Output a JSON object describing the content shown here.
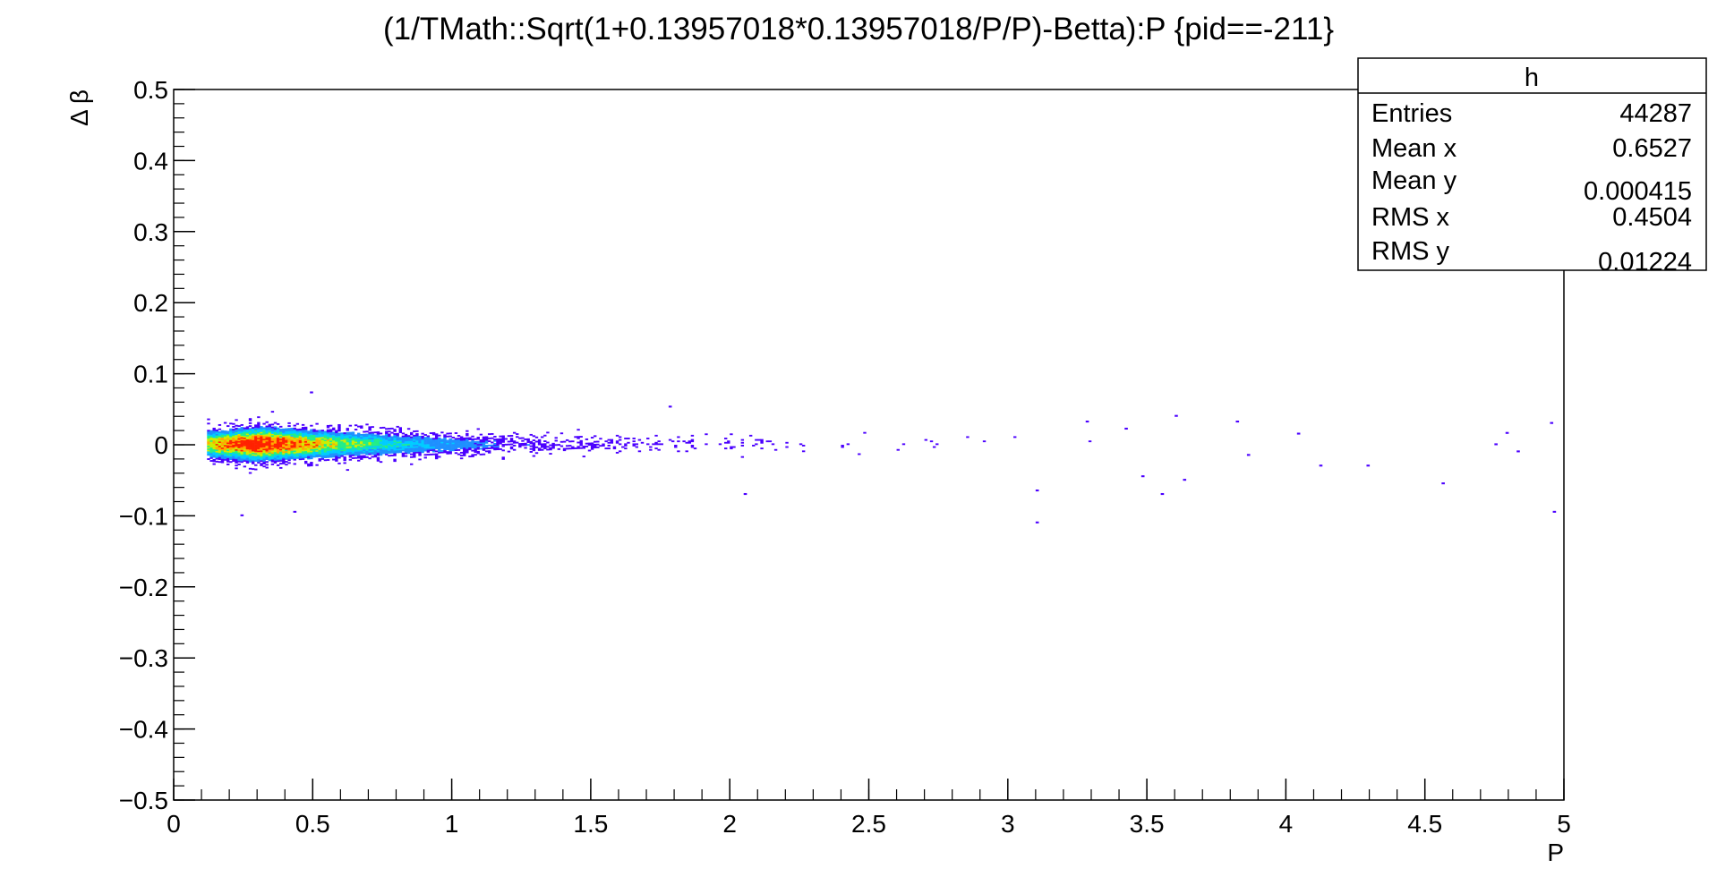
{
  "chart_data": {
    "type": "heatmap",
    "title": "(1/TMath::Sqrt(1+0.13957018*0.13957018/P/P)-Betta):P {pid==-211}",
    "xlabel": "P",
    "ylabel": "Δ β",
    "xlim": [
      0,
      5
    ],
    "ylim": [
      -0.5,
      0.5
    ],
    "x_ticks": [
      {
        "value": 0,
        "label": "0"
      },
      {
        "value": 0.5,
        "label": "0.5"
      },
      {
        "value": 1,
        "label": "1"
      },
      {
        "value": 1.5,
        "label": "1.5"
      },
      {
        "value": 2,
        "label": "2"
      },
      {
        "value": 2.5,
        "label": "2.5"
      },
      {
        "value": 3,
        "label": "3"
      },
      {
        "value": 3.5,
        "label": "3.5"
      },
      {
        "value": 4,
        "label": "4"
      },
      {
        "value": 4.5,
        "label": "4.5"
      },
      {
        "value": 5,
        "label": "5"
      }
    ],
    "y_ticks": [
      {
        "value": 0.5,
        "label": "0.5"
      },
      {
        "value": 0.4,
        "label": "0.4"
      },
      {
        "value": 0.3,
        "label": "0.3"
      },
      {
        "value": 0.2,
        "label": "0.2"
      },
      {
        "value": 0.1,
        "label": "0.1"
      },
      {
        "value": 0,
        "label": "0"
      },
      {
        "value": -0.1,
        "label": "−0.1"
      },
      {
        "value": -0.2,
        "label": "−0.2"
      },
      {
        "value": -0.3,
        "label": "−0.3"
      },
      {
        "value": -0.4,
        "label": "−0.4"
      },
      {
        "value": -0.5,
        "label": "−0.5"
      }
    ],
    "grid": false,
    "legend": "none",
    "colormap": [
      "#4b00ff",
      "#1e90ff",
      "#00ccff",
      "#22ee88",
      "#ccee00",
      "#ffaa00",
      "#ff2200"
    ],
    "density_profile": {
      "p_start": 0.12,
      "peak_p": 0.3,
      "center_y": 0,
      "spread_y_at_peak": 0.012,
      "spread_y_at_high_p": 0.006
    },
    "outliers": [
      {
        "x": 0.24,
        "y": -0.1
      },
      {
        "x": 0.43,
        "y": -0.095
      },
      {
        "x": 0.49,
        "y": 0.073
      },
      {
        "x": 1.78,
        "y": 0.053
      },
      {
        "x": 2.05,
        "y": -0.07
      },
      {
        "x": 3.1,
        "y": -0.11
      },
      {
        "x": 3.1,
        "y": -0.065
      },
      {
        "x": 3.28,
        "y": 0.032
      },
      {
        "x": 3.42,
        "y": 0.022
      },
      {
        "x": 3.48,
        "y": -0.045
      },
      {
        "x": 3.55,
        "y": -0.07
      },
      {
        "x": 3.6,
        "y": 0.04
      },
      {
        "x": 3.63,
        "y": -0.05
      },
      {
        "x": 3.82,
        "y": 0.032
      },
      {
        "x": 3.86,
        "y": -0.015
      },
      {
        "x": 4.04,
        "y": 0.015
      },
      {
        "x": 4.12,
        "y": -0.03
      },
      {
        "x": 4.29,
        "y": -0.03
      },
      {
        "x": 4.56,
        "y": -0.055
      },
      {
        "x": 4.75,
        "y": 0.0
      },
      {
        "x": 4.79,
        "y": 0.016
      },
      {
        "x": 4.83,
        "y": -0.01
      },
      {
        "x": 4.95,
        "y": 0.03
      },
      {
        "x": 4.96,
        "y": -0.095
      }
    ]
  },
  "stats_box": {
    "name": "h",
    "rows": [
      {
        "label": "Entries",
        "value": "44287"
      },
      {
        "label": "Mean x",
        "value": "0.6527"
      },
      {
        "label": "Mean y",
        "value": "0.000415"
      },
      {
        "label": "RMS x",
        "value": "0.4504"
      },
      {
        "label": "RMS y",
        "value": "0.01224"
      }
    ]
  }
}
